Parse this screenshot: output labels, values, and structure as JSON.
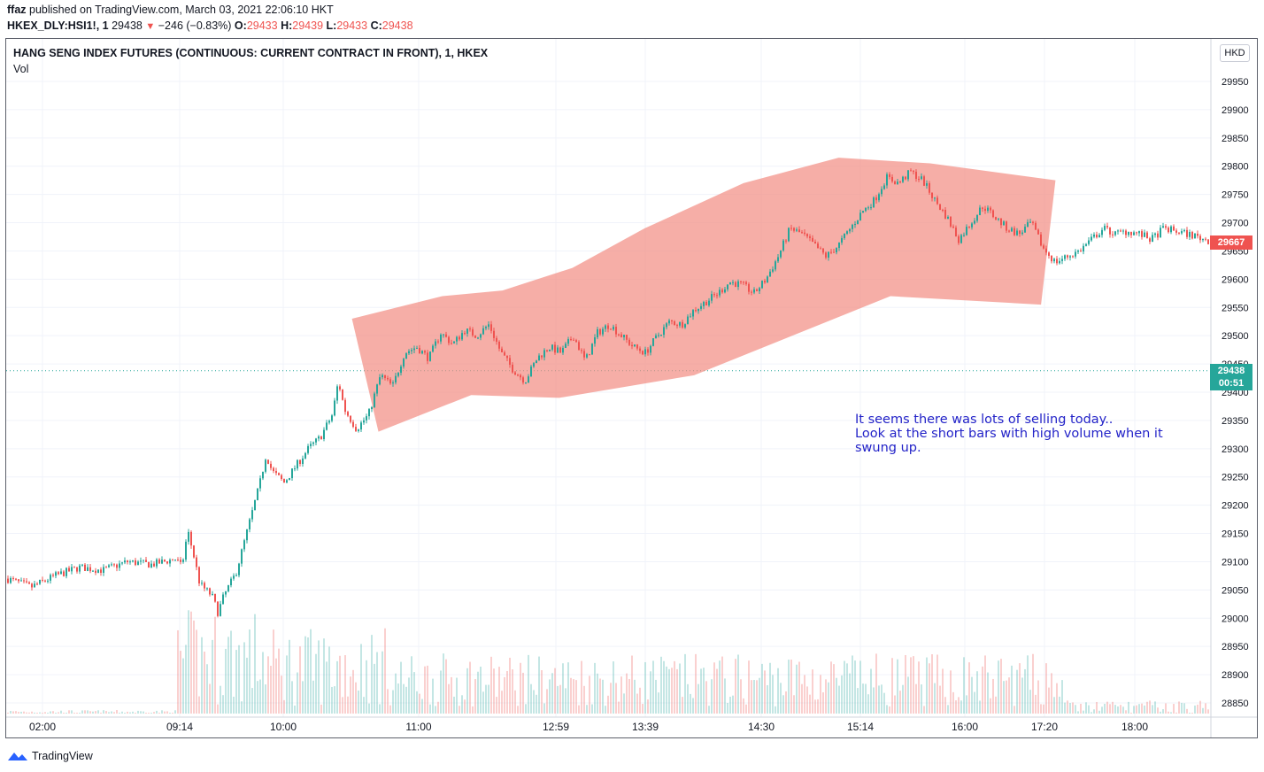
{
  "header": {
    "publisher": "ffaz",
    "published_line": " published on TradingView.com, March 03, 2021 22:06:10 HKT",
    "symbol": "HKEX_DLY:HSI1!, 1",
    "last": "29438",
    "change": "−246 (−0.83%)",
    "o_label": "O:",
    "o_value": "29433",
    "h_label": "H:",
    "h_value": "29439",
    "l_label": "L:",
    "l_value": "29433",
    "c_label": "C:",
    "c_value": "29438"
  },
  "chart_title": "HANG SENG INDEX FUTURES (CONTINUOUS: CURRENT CONTRACT IN FRONT), 1, HKEX",
  "volume_label": "Vol",
  "currency": "HKD",
  "annotation": {
    "line1": "It seems there was lots of selling today..",
    "line2": "Look at the short bars with high volume when it swung up."
  },
  "price_tags": {
    "current": "29438",
    "countdown": "00:51",
    "upper": "29667"
  },
  "footer": {
    "brand": "TradingView"
  },
  "colors": {
    "up": "#26a69a",
    "down": "#ef5350",
    "highlight_fill": "#f28b82",
    "annotation_text": "#2323c8",
    "current_tag": "#26a69a",
    "upper_tag": "#ef5350"
  },
  "chart_data": {
    "type": "candlestick",
    "ylim": [
      28825,
      30000
    ],
    "y_ticks": [
      29950,
      29900,
      29850,
      29800,
      29750,
      29700,
      29650,
      29600,
      29550,
      29500,
      29450,
      29400,
      29350,
      29300,
      29250,
      29200,
      29150,
      29100,
      29050,
      29000,
      28950,
      28900,
      28850
    ],
    "x_ticks": [
      "02:00",
      "09:14",
      "10:00",
      "11:00",
      "12:59",
      "13:39",
      "14:30",
      "15:14",
      "16:00",
      "17:20",
      "18:00"
    ],
    "current_price": 29438,
    "upper_price": 29667,
    "price_path": [
      [
        0,
        29070
      ],
      [
        0.02,
        29055
      ],
      [
        0.04,
        29075
      ],
      [
        0.06,
        29090
      ],
      [
        0.08,
        29085
      ],
      [
        0.1,
        29100
      ],
      [
        0.12,
        29095
      ],
      [
        0.14,
        29105
      ],
      [
        0.145,
        29090
      ],
      [
        0.15,
        29155
      ],
      [
        0.155,
        29110
      ],
      [
        0.16,
        29060
      ],
      [
        0.17,
        29040
      ],
      [
        0.175,
        29010
      ],
      [
        0.18,
        29040
      ],
      [
        0.19,
        29080
      ],
      [
        0.2,
        29160
      ],
      [
        0.21,
        29240
      ],
      [
        0.215,
        29290
      ],
      [
        0.22,
        29260
      ],
      [
        0.23,
        29240
      ],
      [
        0.24,
        29270
      ],
      [
        0.25,
        29300
      ],
      [
        0.26,
        29320
      ],
      [
        0.27,
        29360
      ],
      [
        0.275,
        29420
      ],
      [
        0.28,
        29370
      ],
      [
        0.29,
        29335
      ],
      [
        0.3,
        29360
      ],
      [
        0.31,
        29430
      ],
      [
        0.32,
        29410
      ],
      [
        0.33,
        29470
      ],
      [
        0.34,
        29480
      ],
      [
        0.35,
        29460
      ],
      [
        0.36,
        29505
      ],
      [
        0.37,
        29485
      ],
      [
        0.38,
        29510
      ],
      [
        0.39,
        29500
      ],
      [
        0.4,
        29520
      ],
      [
        0.41,
        29470
      ],
      [
        0.42,
        29440
      ],
      [
        0.43,
        29420
      ],
      [
        0.44,
        29460
      ],
      [
        0.45,
        29480
      ],
      [
        0.46,
        29470
      ],
      [
        0.47,
        29500
      ],
      [
        0.48,
        29455
      ],
      [
        0.49,
        29505
      ],
      [
        0.5,
        29520
      ],
      [
        0.51,
        29500
      ],
      [
        0.52,
        29480
      ],
      [
        0.53,
        29470
      ],
      [
        0.54,
        29500
      ],
      [
        0.55,
        29525
      ],
      [
        0.56,
        29520
      ],
      [
        0.57,
        29545
      ],
      [
        0.58,
        29560
      ],
      [
        0.59,
        29575
      ],
      [
        0.6,
        29595
      ],
      [
        0.61,
        29590
      ],
      [
        0.62,
        29575
      ],
      [
        0.63,
        29600
      ],
      [
        0.64,
        29640
      ],
      [
        0.65,
        29690
      ],
      [
        0.66,
        29680
      ],
      [
        0.67,
        29660
      ],
      [
        0.68,
        29640
      ],
      [
        0.69,
        29660
      ],
      [
        0.7,
        29690
      ],
      [
        0.71,
        29720
      ],
      [
        0.72,
        29740
      ],
      [
        0.73,
        29780
      ],
      [
        0.74,
        29770
      ],
      [
        0.75,
        29790
      ],
      [
        0.76,
        29775
      ],
      [
        0.77,
        29740
      ],
      [
        0.78,
        29710
      ],
      [
        0.79,
        29670
      ],
      [
        0.8,
        29700
      ],
      [
        0.81,
        29730
      ],
      [
        0.82,
        29710
      ],
      [
        0.83,
        29690
      ],
      [
        0.84,
        29680
      ],
      [
        0.85,
        29700
      ],
      [
        0.86,
        29655
      ],
      [
        0.87,
        29630
      ],
      [
        0.88,
        29640
      ],
      [
        0.89,
        29650
      ],
      [
        0.9,
        29670
      ],
      [
        0.91,
        29690
      ],
      [
        0.92,
        29680
      ],
      [
        0.93,
        29685
      ],
      [
        0.94,
        29680
      ],
      [
        0.95,
        29670
      ],
      [
        0.96,
        29690
      ],
      [
        0.97,
        29685
      ],
      [
        0.98,
        29680
      ],
      [
        1.0,
        29667
      ]
    ],
    "highlight_region": [
      [
        29530,
        0.287
      ],
      [
        29570,
        0.362
      ],
      [
        29580,
        0.412
      ],
      [
        29620,
        0.47
      ],
      [
        29690,
        0.53
      ],
      [
        29770,
        0.612
      ],
      [
        29815,
        0.691
      ],
      [
        29805,
        0.767
      ],
      [
        29775,
        0.871
      ],
      [
        29555,
        0.859
      ],
      [
        29570,
        0.734
      ],
      [
        29430,
        0.571
      ],
      [
        29390,
        0.459
      ],
      [
        29395,
        0.386
      ],
      [
        29330,
        0.309
      ]
    ]
  }
}
